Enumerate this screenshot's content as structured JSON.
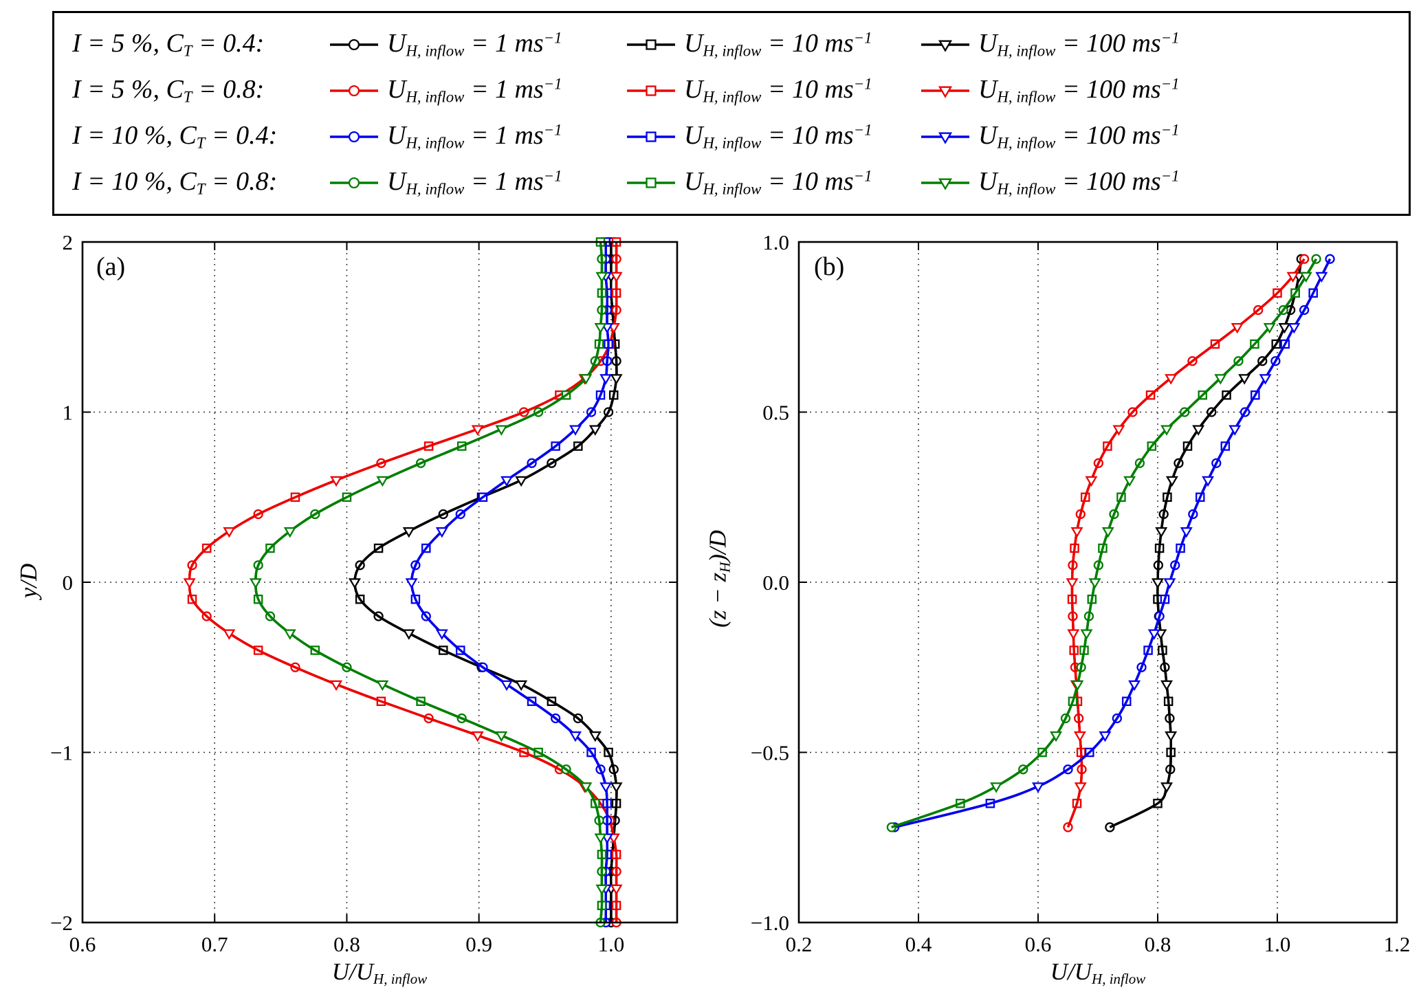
{
  "colors": {
    "black": "#000000",
    "red": "#ee0000",
    "blue": "#0000ee",
    "green": "#007f00"
  },
  "legend": {
    "rows": [
      {
        "p1": "I = 5 %, C",
        "sub": "T",
        "p2": " = 0.4:",
        "color": "black"
      },
      {
        "p1": "I = 5 %, C",
        "sub": "T",
        "p2": " = 0.8:",
        "color": "red"
      },
      {
        "p1": "I = 10 %, C",
        "sub": "T",
        "p2": " = 0.4:",
        "color": "blue"
      },
      {
        "p1": "I = 10 %, C",
        "sub": "T",
        "p2": " = 0.8:",
        "color": "green"
      }
    ],
    "entries": [
      {
        "u": "U",
        "usub": "H, inflow",
        "mid": " = 1 ms",
        "sup": "−1"
      },
      {
        "u": "U",
        "usub": "H, inflow",
        "mid": " = 10 ms",
        "sup": "−1"
      },
      {
        "u": "U",
        "usub": "H, inflow",
        "mid": " = 100 ms",
        "sup": "−1"
      }
    ]
  },
  "axes": {
    "panel_a": {
      "xlabel_p1": "U/U",
      "xlabel_sub": "H, inflow",
      "ylabel_p1": "y/D"
    },
    "panel_b": {
      "xlabel_p1": "U/U",
      "xlabel_sub": "H, inflow",
      "ylabel_p1": "(z − z",
      "ylabel_sub": "H",
      "ylabel_p2": ")/D"
    }
  },
  "chart_data": [
    {
      "id": "a",
      "type": "line",
      "panel_label": "(a)",
      "xlabel": "U/U_H,inflow",
      "ylabel": "y/D",
      "xlim": [
        0.6,
        1.05
      ],
      "ylim": [
        -2,
        2
      ],
      "xticks": [
        0.6,
        0.7,
        0.8,
        0.9,
        1.0
      ],
      "xtick_labels": [
        "0.6",
        "0.7",
        "0.8",
        "0.9",
        "1.0"
      ],
      "yticks": [
        -2,
        -1,
        0,
        1,
        2
      ],
      "ytick_labels": [
        "−2",
        "−1",
        "0",
        "1",
        "2"
      ],
      "grid": true,
      "coord_grid": [
        -2.0,
        -1.9,
        -1.8,
        -1.7,
        -1.6,
        -1.5,
        -1.4,
        -1.3,
        -1.2,
        -1.1,
        -1.0,
        -0.9,
        -0.8,
        -0.7,
        -0.6,
        -0.5,
        -0.4,
        -0.3,
        -0.2,
        -0.1,
        0.0,
        0.1,
        0.2,
        0.3,
        0.4,
        0.5,
        0.6,
        0.7,
        0.8,
        0.9,
        1.0,
        1.1,
        1.2,
        1.3,
        1.4,
        1.5,
        1.6,
        1.7,
        1.8,
        1.9,
        2.0
      ],
      "profiles": {
        "black": [
          1.0,
          1.0,
          1.0,
          1.0,
          1.001,
          1.002,
          1.003,
          1.004,
          1.004,
          1.002,
          0.998,
          0.988,
          0.975,
          0.955,
          0.932,
          0.902,
          0.873,
          0.847,
          0.824,
          0.81,
          0.806,
          0.81,
          0.824,
          0.847,
          0.873,
          0.902,
          0.932,
          0.955,
          0.975,
          0.988,
          0.998,
          1.002,
          1.004,
          1.004,
          1.003,
          1.002,
          1.001,
          1.0,
          1.0,
          1.0,
          1.0
        ],
        "red": [
          1.004,
          1.004,
          1.004,
          1.004,
          1.004,
          1.002,
          0.999,
          0.992,
          0.98,
          0.961,
          0.934,
          0.899,
          0.862,
          0.826,
          0.792,
          0.761,
          0.733,
          0.711,
          0.694,
          0.683,
          0.681,
          0.683,
          0.694,
          0.711,
          0.733,
          0.761,
          0.792,
          0.826,
          0.862,
          0.899,
          0.934,
          0.961,
          0.98,
          0.992,
          0.999,
          1.002,
          1.004,
          1.004,
          1.004,
          1.004,
          1.004
        ],
        "blue": [
          0.996,
          0.996,
          0.996,
          0.996,
          0.997,
          0.997,
          0.997,
          0.997,
          0.996,
          0.992,
          0.985,
          0.973,
          0.958,
          0.94,
          0.921,
          0.903,
          0.886,
          0.872,
          0.86,
          0.852,
          0.849,
          0.852,
          0.86,
          0.872,
          0.886,
          0.903,
          0.921,
          0.94,
          0.958,
          0.973,
          0.985,
          0.992,
          0.996,
          0.997,
          0.998,
          0.997,
          0.997,
          0.997,
          0.996,
          0.996,
          0.996
        ],
        "green": [
          0.992,
          0.993,
          0.993,
          0.993,
          0.993,
          0.992,
          0.991,
          0.988,
          0.981,
          0.966,
          0.945,
          0.917,
          0.887,
          0.856,
          0.827,
          0.8,
          0.776,
          0.757,
          0.742,
          0.733,
          0.731,
          0.733,
          0.742,
          0.757,
          0.776,
          0.8,
          0.827,
          0.856,
          0.887,
          0.917,
          0.945,
          0.966,
          0.981,
          0.988,
          0.991,
          0.992,
          0.993,
          0.993,
          0.993,
          0.993,
          0.992
        ]
      },
      "series": [
        {
          "name": "I=5%, CT=0.4, UH,inflow=1 ms-1",
          "color": "black",
          "profile": "black",
          "marker": "circle",
          "marker_every": 3,
          "marker_offset": 0
        },
        {
          "name": "I=5%, CT=0.4, UH,inflow=10 ms-1",
          "color": "black",
          "profile": "black",
          "marker": "square",
          "marker_every": 3,
          "marker_offset": 1
        },
        {
          "name": "I=5%, CT=0.4, UH,inflow=100 ms-1",
          "color": "black",
          "profile": "black",
          "marker": "triangle-down",
          "marker_every": 3,
          "marker_offset": 2
        },
        {
          "name": "I=5%, CT=0.8, UH,inflow=1 ms-1",
          "color": "red",
          "profile": "red",
          "marker": "circle",
          "marker_every": 3,
          "marker_offset": 0
        },
        {
          "name": "I=5%, CT=0.8, UH,inflow=10 ms-1",
          "color": "red",
          "profile": "red",
          "marker": "square",
          "marker_every": 3,
          "marker_offset": 1
        },
        {
          "name": "I=5%, CT=0.8, UH,inflow=100 ms-1",
          "color": "red",
          "profile": "red",
          "marker": "triangle-down",
          "marker_every": 3,
          "marker_offset": 2
        },
        {
          "name": "I=10%, CT=0.4, UH,inflow=1 ms-1",
          "color": "blue",
          "profile": "blue",
          "marker": "circle",
          "marker_every": 3,
          "marker_offset": 0
        },
        {
          "name": "I=10%, CT=0.4, UH,inflow=10 ms-1",
          "color": "blue",
          "profile": "blue",
          "marker": "square",
          "marker_every": 3,
          "marker_offset": 1
        },
        {
          "name": "I=10%, CT=0.4, UH,inflow=100 ms-1",
          "color": "blue",
          "profile": "blue",
          "marker": "triangle-down",
          "marker_every": 3,
          "marker_offset": 2
        },
        {
          "name": "I=10%, CT=0.8, UH,inflow=1 ms-1",
          "color": "green",
          "profile": "green",
          "marker": "circle",
          "marker_every": 3,
          "marker_offset": 0
        },
        {
          "name": "I=10%, CT=0.8, UH,inflow=10 ms-1",
          "color": "green",
          "profile": "green",
          "marker": "square",
          "marker_every": 3,
          "marker_offset": 1
        },
        {
          "name": "I=10%, CT=0.8, UH,inflow=100 ms-1",
          "color": "green",
          "profile": "green",
          "marker": "triangle-down",
          "marker_every": 3,
          "marker_offset": 2
        }
      ]
    },
    {
      "id": "b",
      "type": "line",
      "panel_label": "(b)",
      "xlabel": "U/U_H,inflow",
      "ylabel": "(z − z_H)/D",
      "xlim": [
        0.2,
        1.2
      ],
      "ylim": [
        -1,
        1
      ],
      "xticks": [
        0.2,
        0.4,
        0.6,
        0.8,
        1.0,
        1.2
      ],
      "xtick_labels": [
        "0.2",
        "0.4",
        "0.6",
        "0.8",
        "1.0",
        "1.2"
      ],
      "yticks": [
        -1,
        -0.5,
        0,
        0.5,
        1
      ],
      "ytick_labels": [
        "−1.0",
        "−0.5",
        "0.0",
        "0.5",
        "1.0"
      ],
      "grid": true,
      "coord_grid": [
        -0.72,
        -0.65,
        -0.6,
        -0.55,
        -0.5,
        -0.45,
        -0.4,
        -0.35,
        -0.3,
        -0.25,
        -0.2,
        -0.15,
        -0.1,
        -0.05,
        0.0,
        0.05,
        0.1,
        0.15,
        0.2,
        0.25,
        0.3,
        0.35,
        0.4,
        0.45,
        0.5,
        0.55,
        0.6,
        0.65,
        0.7,
        0.75,
        0.8,
        0.85,
        0.9,
        0.95
      ],
      "profiles": {
        "black": [
          0.72,
          0.8,
          0.815,
          0.821,
          0.822,
          0.822,
          0.82,
          0.818,
          0.815,
          0.812,
          0.808,
          0.805,
          0.802,
          0.8,
          0.8,
          0.801,
          0.803,
          0.806,
          0.81,
          0.816,
          0.824,
          0.835,
          0.85,
          0.868,
          0.89,
          0.915,
          0.945,
          0.975,
          0.998,
          1.012,
          1.022,
          1.03,
          1.036,
          1.04
        ],
        "red": [
          0.65,
          0.665,
          0.671,
          0.673,
          0.672,
          0.67,
          0.668,
          0.666,
          0.664,
          0.662,
          0.66,
          0.659,
          0.658,
          0.657,
          0.657,
          0.658,
          0.661,
          0.665,
          0.671,
          0.679,
          0.689,
          0.701,
          0.716,
          0.735,
          0.758,
          0.788,
          0.822,
          0.858,
          0.896,
          0.933,
          0.968,
          1.0,
          1.026,
          1.045
        ],
        "blue": [
          0.36,
          0.52,
          0.6,
          0.65,
          0.686,
          0.712,
          0.732,
          0.748,
          0.761,
          0.773,
          0.784,
          0.794,
          0.803,
          0.812,
          0.82,
          0.829,
          0.838,
          0.848,
          0.859,
          0.871,
          0.884,
          0.898,
          0.913,
          0.929,
          0.946,
          0.963,
          0.98,
          0.997,
          1.013,
          1.028,
          1.045,
          1.06,
          1.074,
          1.088
        ],
        "green": [
          0.355,
          0.47,
          0.53,
          0.575,
          0.607,
          0.63,
          0.646,
          0.658,
          0.666,
          0.672,
          0.677,
          0.681,
          0.685,
          0.69,
          0.695,
          0.701,
          0.708,
          0.717,
          0.727,
          0.739,
          0.753,
          0.77,
          0.79,
          0.815,
          0.845,
          0.875,
          0.905,
          0.935,
          0.962,
          0.987,
          1.01,
          1.03,
          1.048,
          1.065
        ]
      },
      "series": [
        {
          "name": "I=5%, CT=0.4, UH,inflow=1 ms-1",
          "color": "black",
          "profile": "black",
          "marker": "circle",
          "marker_every": 3,
          "marker_offset": 0
        },
        {
          "name": "I=5%, CT=0.4, UH,inflow=10 ms-1",
          "color": "black",
          "profile": "black",
          "marker": "square",
          "marker_every": 3,
          "marker_offset": 1
        },
        {
          "name": "I=5%, CT=0.4, UH,inflow=100 ms-1",
          "color": "black",
          "profile": "black",
          "marker": "triangle-down",
          "marker_every": 3,
          "marker_offset": 2
        },
        {
          "name": "I=5%, CT=0.8, UH,inflow=1 ms-1",
          "color": "red",
          "profile": "red",
          "marker": "circle",
          "marker_every": 3,
          "marker_offset": 0
        },
        {
          "name": "I=5%, CT=0.8, UH,inflow=10 ms-1",
          "color": "red",
          "profile": "red",
          "marker": "square",
          "marker_every": 3,
          "marker_offset": 1
        },
        {
          "name": "I=5%, CT=0.8, UH,inflow=100 ms-1",
          "color": "red",
          "profile": "red",
          "marker": "triangle-down",
          "marker_every": 3,
          "marker_offset": 2
        },
        {
          "name": "I=10%, CT=0.4, UH,inflow=1 ms-1",
          "color": "blue",
          "profile": "blue",
          "marker": "circle",
          "marker_every": 3,
          "marker_offset": 0
        },
        {
          "name": "I=10%, CT=0.4, UH,inflow=10 ms-1",
          "color": "blue",
          "profile": "blue",
          "marker": "square",
          "marker_every": 3,
          "marker_offset": 1
        },
        {
          "name": "I=10%, CT=0.4, UH,inflow=100 ms-1",
          "color": "blue",
          "profile": "blue",
          "marker": "triangle-down",
          "marker_every": 3,
          "marker_offset": 2
        },
        {
          "name": "I=10%, CT=0.8, UH,inflow=1 ms-1",
          "color": "green",
          "profile": "green",
          "marker": "circle",
          "marker_every": 3,
          "marker_offset": 0
        },
        {
          "name": "I=10%, CT=0.8, UH,inflow=10 ms-1",
          "color": "green",
          "profile": "green",
          "marker": "square",
          "marker_every": 3,
          "marker_offset": 1
        },
        {
          "name": "I=10%, CT=0.8, UH,inflow=100 ms-1",
          "color": "green",
          "profile": "green",
          "marker": "triangle-down",
          "marker_every": 3,
          "marker_offset": 2
        }
      ]
    }
  ]
}
